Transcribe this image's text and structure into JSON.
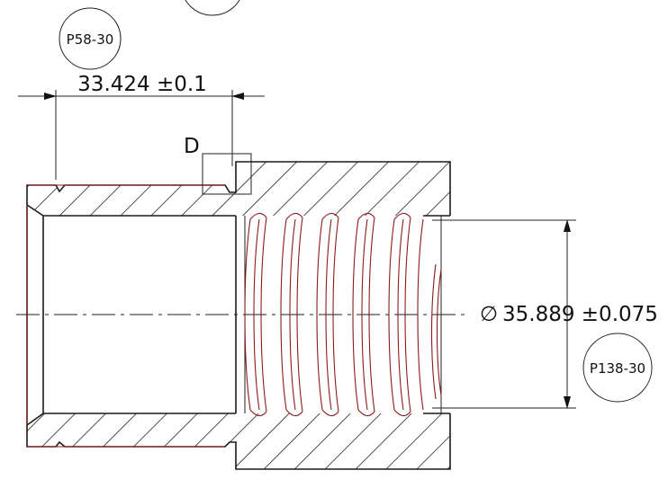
{
  "dimensions": {
    "length": "33.424 ±0.1",
    "diameter_symbol": "∅",
    "diameter": "35.889 ±0.075"
  },
  "balloons": {
    "left": "P58-30",
    "right": "P138-30"
  },
  "detail": {
    "label": "D"
  },
  "colors": {
    "outline": "#1a1a1a",
    "thread": "#8b1a1a",
    "hatch": "#222222"
  }
}
